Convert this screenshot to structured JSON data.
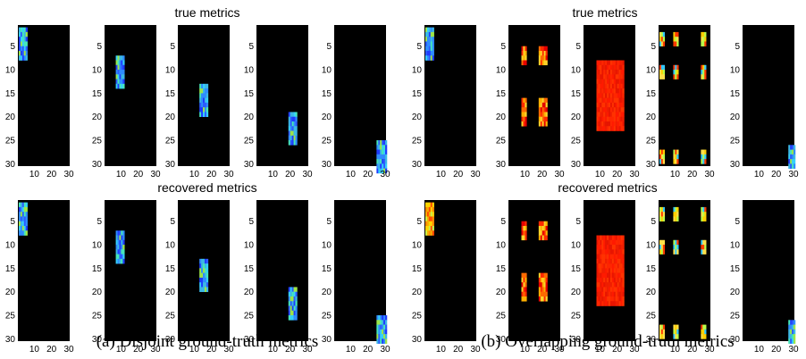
{
  "figure": {
    "captions": [
      "(a) Disjoint ground-truth metrics",
      "(b) Overlapping ground-truth metrics"
    ],
    "row_titles": [
      "true metrics",
      "recovered metrics"
    ]
  },
  "chart_data": [
    {
      "type": "heatmap",
      "group": "a",
      "row": "true metrics",
      "tiles": [
        {
          "pattern": "block",
          "colormap": "cool",
          "rect": {
            "x": [
              1,
              5
            ],
            "y": [
              1,
              7
            ]
          }
        },
        {
          "pattern": "block",
          "colormap": "cool",
          "rect": {
            "x": [
              7,
              11
            ],
            "y": [
              7,
              13
            ]
          }
        },
        {
          "pattern": "block",
          "colormap": "cool",
          "rect": {
            "x": [
              13,
              17
            ],
            "y": [
              13,
              19
            ]
          }
        },
        {
          "pattern": "block",
          "colormap": "cool",
          "rect": {
            "x": [
              19,
              23
            ],
            "y": [
              19,
              25
            ]
          }
        },
        {
          "pattern": "block",
          "colormap": "cool",
          "rect": {
            "x": [
              25,
              30
            ],
            "y": [
              25,
              31
            ]
          }
        }
      ],
      "x_ticks": [
        10,
        20,
        30
      ],
      "y_ticks": [
        5,
        10,
        15,
        20,
        25,
        30
      ],
      "x_range": [
        0.5,
        30.5
      ],
      "y_range": [
        0.5,
        30.5
      ]
    },
    {
      "type": "heatmap",
      "group": "b",
      "row": "true metrics",
      "tiles": [
        {
          "pattern": "block",
          "colormap": "cool",
          "rect": {
            "x": [
              1,
              5
            ],
            "y": [
              1,
              7
            ]
          }
        },
        {
          "pattern": "squares",
          "colormap": "hot",
          "rects": [
            {
              "x": [
                8,
                10
              ],
              "y": [
                5,
                8
              ]
            },
            {
              "x": [
                18,
                22
              ],
              "y": [
                5,
                8
              ]
            },
            {
              "x": [
                8,
                10
              ],
              "y": [
                16,
                21
              ]
            },
            {
              "x": [
                18,
                22
              ],
              "y": [
                16,
                21
              ]
            }
          ]
        },
        {
          "pattern": "block",
          "colormap": "red",
          "rect": {
            "x": [
              8,
              23
            ],
            "y": [
              8,
              22
            ]
          }
        },
        {
          "pattern": "dots",
          "colormap": "mixed",
          "rects": [
            {
              "x": [
                1,
                3
              ],
              "y": [
                2,
                4
              ]
            },
            {
              "x": [
                9,
                11
              ],
              "y": [
                2,
                4
              ]
            },
            {
              "x": [
                25,
                27
              ],
              "y": [
                2,
                4
              ]
            },
            {
              "x": [
                1,
                3
              ],
              "y": [
                9,
                11
              ]
            },
            {
              "x": [
                9,
                11
              ],
              "y": [
                9,
                11
              ]
            },
            {
              "x": [
                25,
                27
              ],
              "y": [
                9,
                11
              ]
            },
            {
              "x": [
                1,
                3
              ],
              "y": [
                27,
                29
              ]
            },
            {
              "x": [
                9,
                11
              ],
              "y": [
                27,
                29
              ]
            },
            {
              "x": [
                25,
                27
              ],
              "y": [
                27,
                29
              ]
            }
          ]
        },
        {
          "pattern": "block",
          "colormap": "cool",
          "rect": {
            "x": [
              27,
              30
            ],
            "y": [
              26,
              30
            ]
          }
        }
      ],
      "x_ticks": [
        10,
        20,
        30
      ],
      "y_ticks": [
        5,
        10,
        15,
        20,
        25,
        30
      ],
      "x_range": [
        0.5,
        30.5
      ],
      "y_range": [
        0.5,
        30.5
      ]
    },
    {
      "type": "heatmap",
      "group": "a",
      "row": "recovered metrics",
      "tiles": [
        {
          "pattern": "block",
          "colormap": "cool",
          "rect": {
            "x": [
              1,
              5
            ],
            "y": [
              1,
              7
            ]
          }
        },
        {
          "pattern": "block",
          "colormap": "cool",
          "rect": {
            "x": [
              7,
              11
            ],
            "y": [
              7,
              13
            ]
          }
        },
        {
          "pattern": "block",
          "colormap": "cool",
          "rect": {
            "x": [
              13,
              17
            ],
            "y": [
              13,
              19
            ]
          }
        },
        {
          "pattern": "block",
          "colormap": "cool",
          "rect": {
            "x": [
              19,
              23
            ],
            "y": [
              19,
              25
            ]
          }
        },
        {
          "pattern": "block",
          "colormap": "cool",
          "rect": {
            "x": [
              25,
              30
            ],
            "y": [
              25,
              30
            ]
          }
        }
      ],
      "x_ticks": [
        10,
        20,
        30
      ],
      "y_ticks": [
        5,
        10,
        15,
        20,
        25,
        30
      ],
      "x_range": [
        0.5,
        30.5
      ],
      "y_range": [
        0.5,
        30.5
      ]
    },
    {
      "type": "heatmap",
      "group": "b",
      "row": "recovered metrics",
      "tiles": [
        {
          "pattern": "block",
          "colormap": "warm",
          "rect": {
            "x": [
              1,
              5
            ],
            "y": [
              1,
              7
            ]
          }
        },
        {
          "pattern": "squares",
          "colormap": "hot",
          "rects": [
            {
              "x": [
                8,
                10
              ],
              "y": [
                5,
                8
              ]
            },
            {
              "x": [
                18,
                22
              ],
              "y": [
                5,
                8
              ]
            },
            {
              "x": [
                8,
                10
              ],
              "y": [
                16,
                21
              ]
            },
            {
              "x": [
                18,
                22
              ],
              "y": [
                16,
                21
              ]
            }
          ]
        },
        {
          "pattern": "block",
          "colormap": "red",
          "rect": {
            "x": [
              8,
              23
            ],
            "y": [
              8,
              22
            ]
          }
        },
        {
          "pattern": "dots",
          "colormap": "mixed",
          "rects": [
            {
              "x": [
                1,
                3
              ],
              "y": [
                2,
                4
              ]
            },
            {
              "x": [
                9,
                11
              ],
              "y": [
                2,
                4
              ]
            },
            {
              "x": [
                25,
                27
              ],
              "y": [
                2,
                4
              ]
            },
            {
              "x": [
                1,
                3
              ],
              "y": [
                9,
                11
              ]
            },
            {
              "x": [
                9,
                11
              ],
              "y": [
                9,
                11
              ]
            },
            {
              "x": [
                25,
                27
              ],
              "y": [
                9,
                11
              ]
            },
            {
              "x": [
                1,
                3
              ],
              "y": [
                27,
                29
              ]
            },
            {
              "x": [
                9,
                11
              ],
              "y": [
                27,
                29
              ]
            },
            {
              "x": [
                25,
                27
              ],
              "y": [
                27,
                29
              ]
            }
          ]
        },
        {
          "pattern": "block",
          "colormap": "cool",
          "rect": {
            "x": [
              27,
              30
            ],
            "y": [
              26,
              30
            ]
          }
        }
      ],
      "x_ticks": [
        10,
        20,
        30
      ],
      "y_ticks": [
        5,
        10,
        15,
        20,
        25,
        30
      ],
      "x_range": [
        0.5,
        30.5
      ],
      "y_range": [
        0.5,
        30.5
      ]
    }
  ],
  "colormaps": {
    "cool": [
      "#1f3cff",
      "#2f8cff",
      "#34d0ff",
      "#46e8b9",
      "#9de64a",
      "#2c5cff",
      "#3bb8e6"
    ],
    "hot": [
      "#ffb000",
      "#ff6a00",
      "#ff2a00",
      "#e60000",
      "#ffd52a"
    ],
    "red": [
      "#ff1a00",
      "#ff2600",
      "#e81500",
      "#ff3300",
      "#f01e00"
    ],
    "warm": [
      "#ffd400",
      "#ff8a00",
      "#c8f04a",
      "#ff4a00",
      "#f5b000"
    ],
    "mixed": [
      "#ff3a00",
      "#ffe04a",
      "#33c8ff",
      "#ffcf00",
      "#b8ff4a"
    ]
  }
}
